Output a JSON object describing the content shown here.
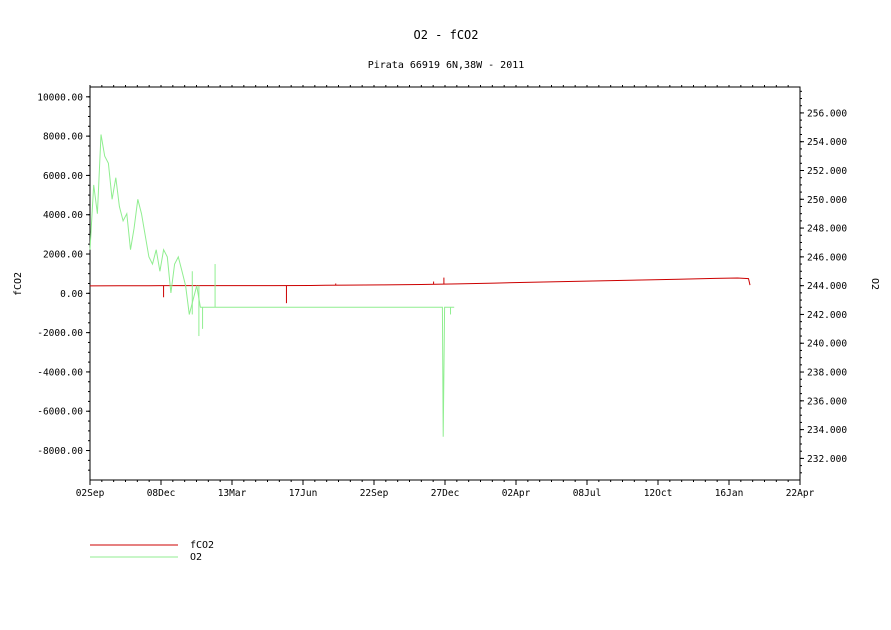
{
  "chart_data": {
    "type": "line",
    "title": "O2 - fCO2",
    "subtitle": "Pirata 66919 6N,38W - 2011",
    "ylabel_left": "fCO2",
    "ylabel_right": "O2",
    "x_ticks": [
      "02Sep",
      "08Dec",
      "13Mar",
      "17Jun",
      "22Sep",
      "27Dec",
      "02Apr",
      "08Jul",
      "12Oct",
      "16Jan",
      "22Apr"
    ],
    "left_axis": {
      "ylim": [
        -9500,
        10500
      ],
      "ticks": [
        10000,
        8000,
        6000,
        4000,
        2000,
        0,
        -2000,
        -4000,
        -6000,
        -8000
      ],
      "tick_labels": [
        "10000.00",
        "8000.00",
        "6000.00",
        "4000.00",
        "2000.00",
        "0.00",
        "-2000.00",
        "-4000.00",
        "-6000.00",
        "-8000.00"
      ]
    },
    "right_axis": {
      "ylim": [
        230.5,
        257.8
      ],
      "ticks": [
        256,
        254,
        252,
        250,
        248,
        246,
        244,
        242,
        240,
        238,
        236,
        234,
        232
      ],
      "tick_labels": [
        "256.000",
        "254.000",
        "252.000",
        "250.000",
        "248.000",
        "246.000",
        "244.000",
        "242.000",
        "240.000",
        "238.000",
        "236.000",
        "234.000",
        "232.000"
      ]
    },
    "series": [
      {
        "name": "fCO2",
        "color": "#cc0000",
        "axis": "left",
        "x": [
          0,
          40,
          80,
          100,
          160,
          200,
          250,
          300,
          320,
          350,
          400,
          450,
          500,
          550,
          600,
          650,
          700,
          750,
          800,
          850,
          880,
          895,
          897
        ],
        "y": [
          380,
          385,
          390,
          395,
          395,
          395,
          395,
          400,
          410,
          420,
          430,
          450,
          480,
          520,
          560,
          600,
          640,
          680,
          720,
          760,
          780,
          750,
          420
        ],
        "spikes": [
          {
            "x": 100,
            "y": -200
          },
          {
            "x": 267,
            "y": -500
          },
          {
            "x": 334,
            "y": 500
          },
          {
            "x": 467,
            "y": 600
          },
          {
            "x": 481,
            "y": 800
          }
        ]
      },
      {
        "name": "O2",
        "color": "#90ee90",
        "axis": "right",
        "x": [
          0,
          5,
          10,
          15,
          20,
          25,
          30,
          35,
          40,
          45,
          50,
          55,
          60,
          65,
          70,
          75,
          80,
          85,
          90,
          95,
          100,
          105,
          110,
          115,
          120,
          125,
          130,
          135,
          140,
          145,
          150,
          155,
          160,
          180,
          200,
          220,
          240,
          260,
          300,
          340,
          380,
          420,
          460,
          479,
          480,
          482,
          485,
          490,
          495
        ],
        "y": [
          246.5,
          251.0,
          249.0,
          254.5,
          253.0,
          252.5,
          250.0,
          251.5,
          249.5,
          248.5,
          249.0,
          246.5,
          248.0,
          250.0,
          249.0,
          247.5,
          246.0,
          245.5,
          246.5,
          245.0,
          246.5,
          246.0,
          243.5,
          245.5,
          246.0,
          245.0,
          244.0,
          242.0,
          243.0,
          244.0,
          242.5,
          242.5,
          242.5,
          242.5,
          242.5,
          242.5,
          242.5,
          242.5,
          242.5,
          242.5,
          242.5,
          242.5,
          242.5,
          242.5,
          233.5,
          242.5,
          242.5,
          242.5,
          242.5
        ],
        "spikes": [
          {
            "x": 139,
            "y": 245.0
          },
          {
            "x": 148,
            "y": 240.5
          },
          {
            "x": 153,
            "y": 241.0
          },
          {
            "x": 170,
            "y": 245.5
          },
          {
            "x": 490,
            "y": 242.0
          }
        ]
      }
    ],
    "x_range": [
      0,
      965
    ],
    "legend": {
      "placement": "bottom-left",
      "entries": [
        "fCO2",
        "O2"
      ]
    },
    "grid": false
  }
}
